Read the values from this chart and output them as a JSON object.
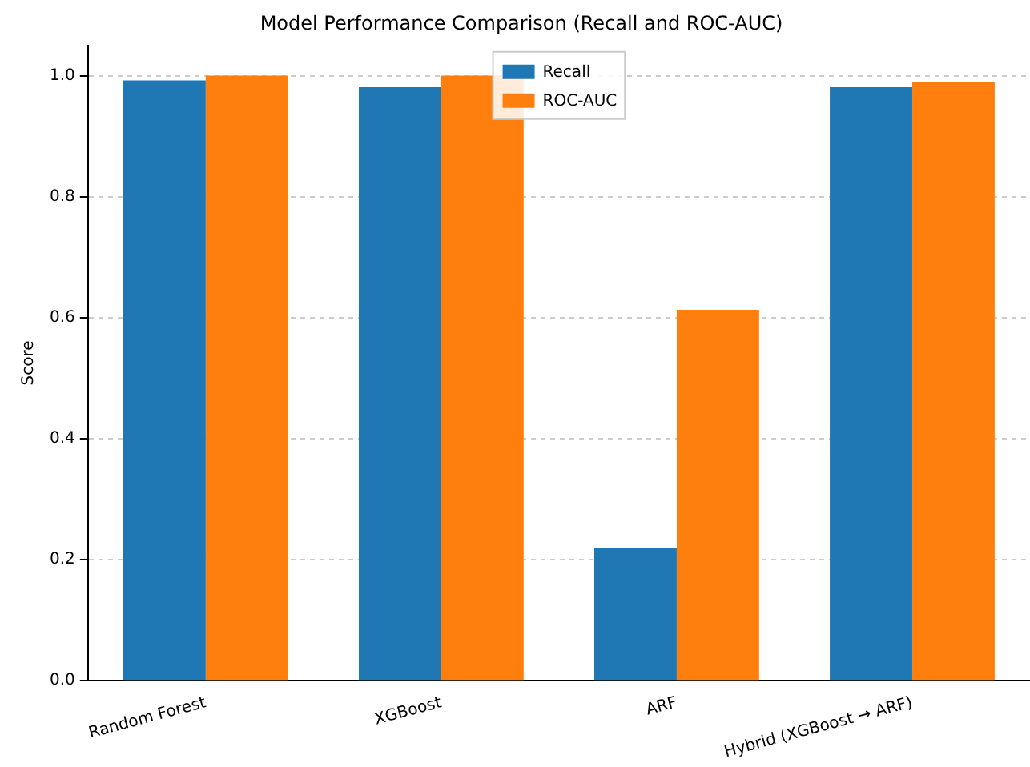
{
  "chart_data": {
    "type": "bar",
    "title": "Model Performance Comparison (Recall and ROC-AUC)",
    "ylabel": "Score",
    "categories": [
      "Random Forest",
      "XGBoost",
      "ARF",
      "Hybrid (XGBoost → ARF)"
    ],
    "series": [
      {
        "name": "Recall",
        "color": "#1f77b4",
        "values": [
          0.992,
          0.981,
          0.22,
          0.981
        ]
      },
      {
        "name": "ROC-AUC",
        "color": "#ff7f0e",
        "values": [
          1.0,
          1.0,
          0.613,
          0.989
        ]
      }
    ],
    "ylim": [
      0,
      1.05
    ],
    "yticks": [
      {
        "value": 0,
        "label": "0.0"
      },
      0.2,
      0.4,
      0.6,
      0.8,
      {
        "value": 1,
        "label": "1.0"
      }
    ],
    "grid": "y",
    "legend": "top"
  }
}
